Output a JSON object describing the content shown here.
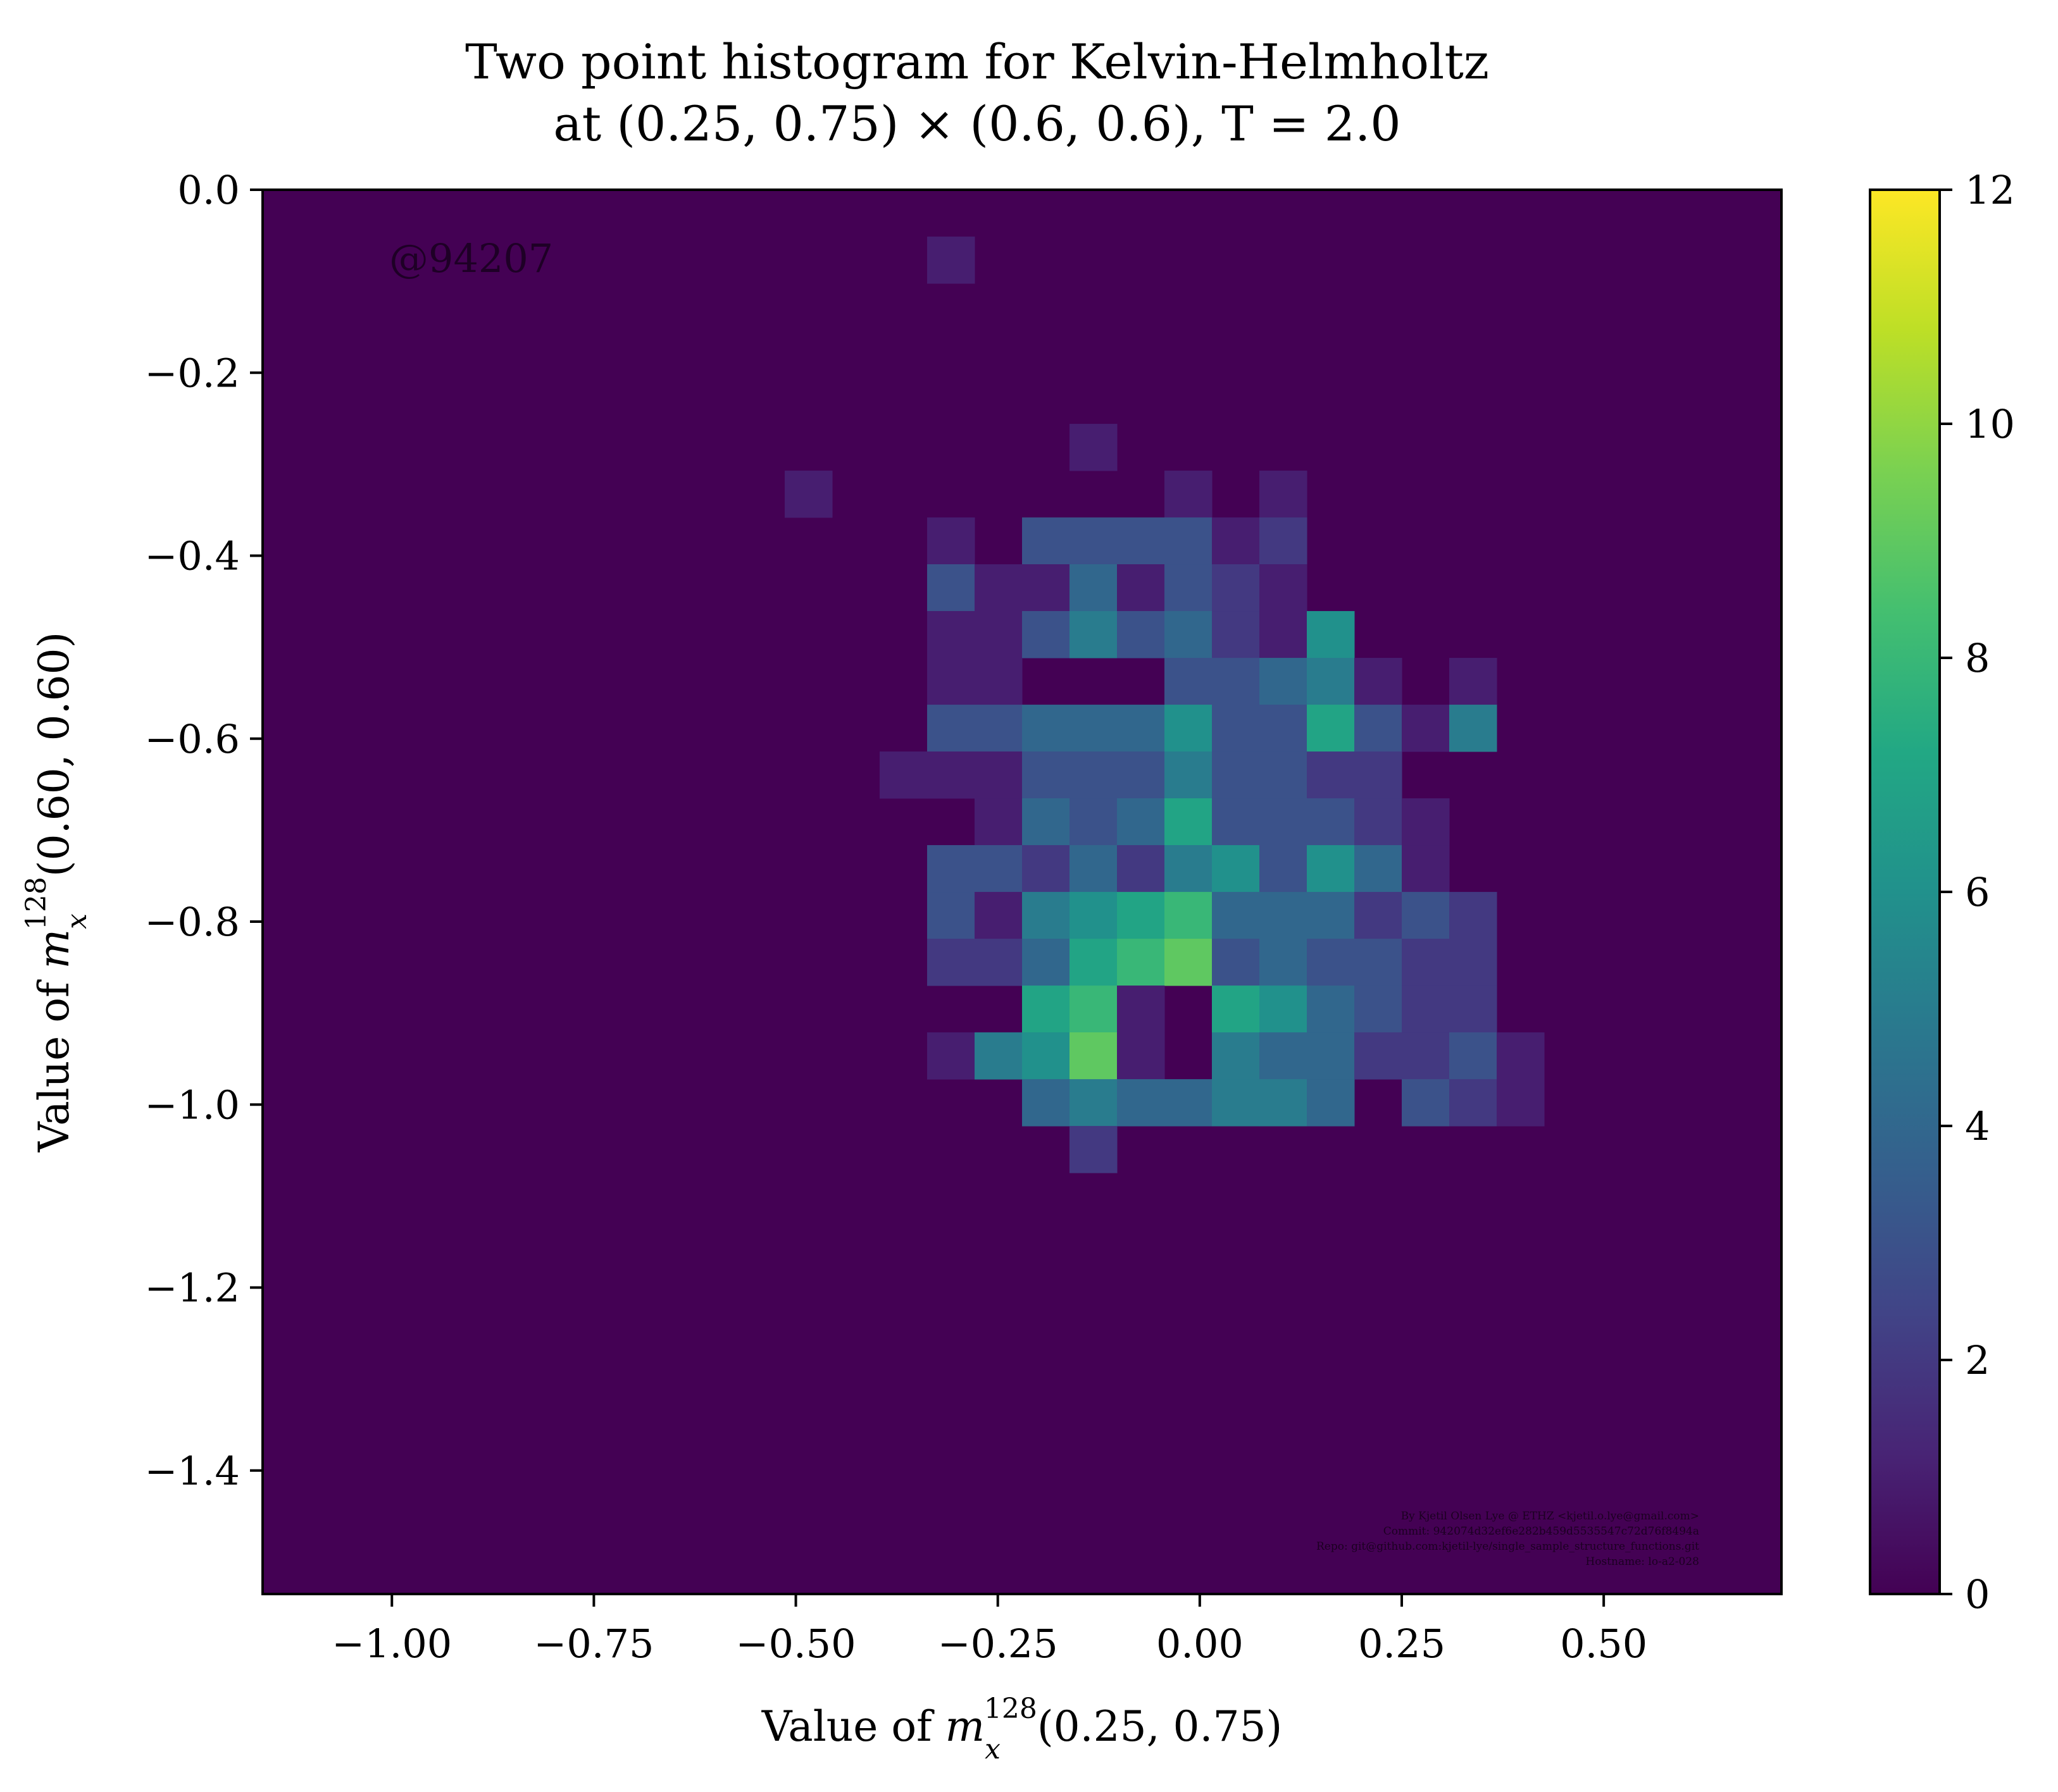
{
  "chart_data": {
    "type": "heatmap",
    "title": [
      "Two point histogram for Kelvin-Helmholtz",
      "at (0.25, 0.75) × (0.6, 0.6), T = 2.0"
    ],
    "xlabel": "Value of m_x^128(0.25, 0.75)",
    "ylabel": "Value of m_x^128(0.60, 0.60)",
    "xlim": [
      -1.16,
      0.72
    ],
    "ylim": [
      -1.535,
      0.0
    ],
    "xticks": [
      -1.0,
      -0.75,
      -0.5,
      -0.25,
      0.0,
      0.25,
      0.5
    ],
    "xtick_labels": [
      "−1.00",
      "−0.75",
      "−0.50",
      "−0.25",
      "0.00",
      "0.25",
      "0.50"
    ],
    "yticks": [
      0.0,
      -0.2,
      -0.4,
      -0.6,
      -0.8,
      -1.0,
      -1.2,
      -1.4
    ],
    "ytick_labels": [
      "0.0",
      "−0.2",
      "−0.4",
      "−0.6",
      "−0.8",
      "−1.0",
      "−1.2",
      "−1.4"
    ],
    "colorbar": {
      "colormap": "viridis",
      "min": 0,
      "max": 12,
      "ticks": [
        0,
        2,
        4,
        6,
        8,
        10,
        12
      ],
      "tick_labels": [
        "0",
        "2",
        "4",
        "6",
        "8",
        "10",
        "12"
      ]
    },
    "bins": {
      "nx": 32,
      "ny": 30,
      "x_start": -1.16,
      "x_step": 0.05875,
      "y_top": 0.0,
      "y_step": 0.05117
    },
    "row_order": "top-to-bottom",
    "counts": [
      "00000000000000000000000000000000",
      "00000000000000100000000000000000",
      "00000000000000000000000000000000",
      "00000000000000000000000000000000",
      "00000000000000000000000000000000",
      "00000000000000000100000000000000",
      "00000000000100000001010000000000",
      "00000000000000103333120000000000",
      "00000000000000311413210000000000",
      "00000000000000113534216000000000",
      "00000000000000110003345101000000",
      "00000000000000334446337315000000",
      "00000000000001113335332200000000",
      "00000000000000014347333210000000",
      "00000000000000332425636410000000",
      "00000000000000315678444232000000",
      "00000000000000224789343322000000",
      "00000000000000007810764322000000",
      "00000000000000156910544223100000",
      "00000000000000004544554032100000",
      "00000000000000000200000000000000",
      "00000000000000000000000000000000",
      "00000000000000000000000000000000",
      "00000000000000000000000000000000",
      "00000000000000000000000000000000",
      "00000000000000000000000000000000",
      "00000000000000000000000000000000",
      "00000000000000000000000000000000",
      "00000000000000000000000000000000",
      "00000000000000000000000000000000"
    ],
    "grid": false
  },
  "watermark": "@94207",
  "credits": [
    "By Kjetil Olsen Lye @ ETHZ <kjetil.o.lye@gmail.com>",
    "Commit: 942074d32ef6e282b459d5535547c72d76f8494a",
    "Repo: git@github.com:kjetil-lye/single_sample_structure_functions.git",
    "Hostname: lo-a2-028"
  ]
}
